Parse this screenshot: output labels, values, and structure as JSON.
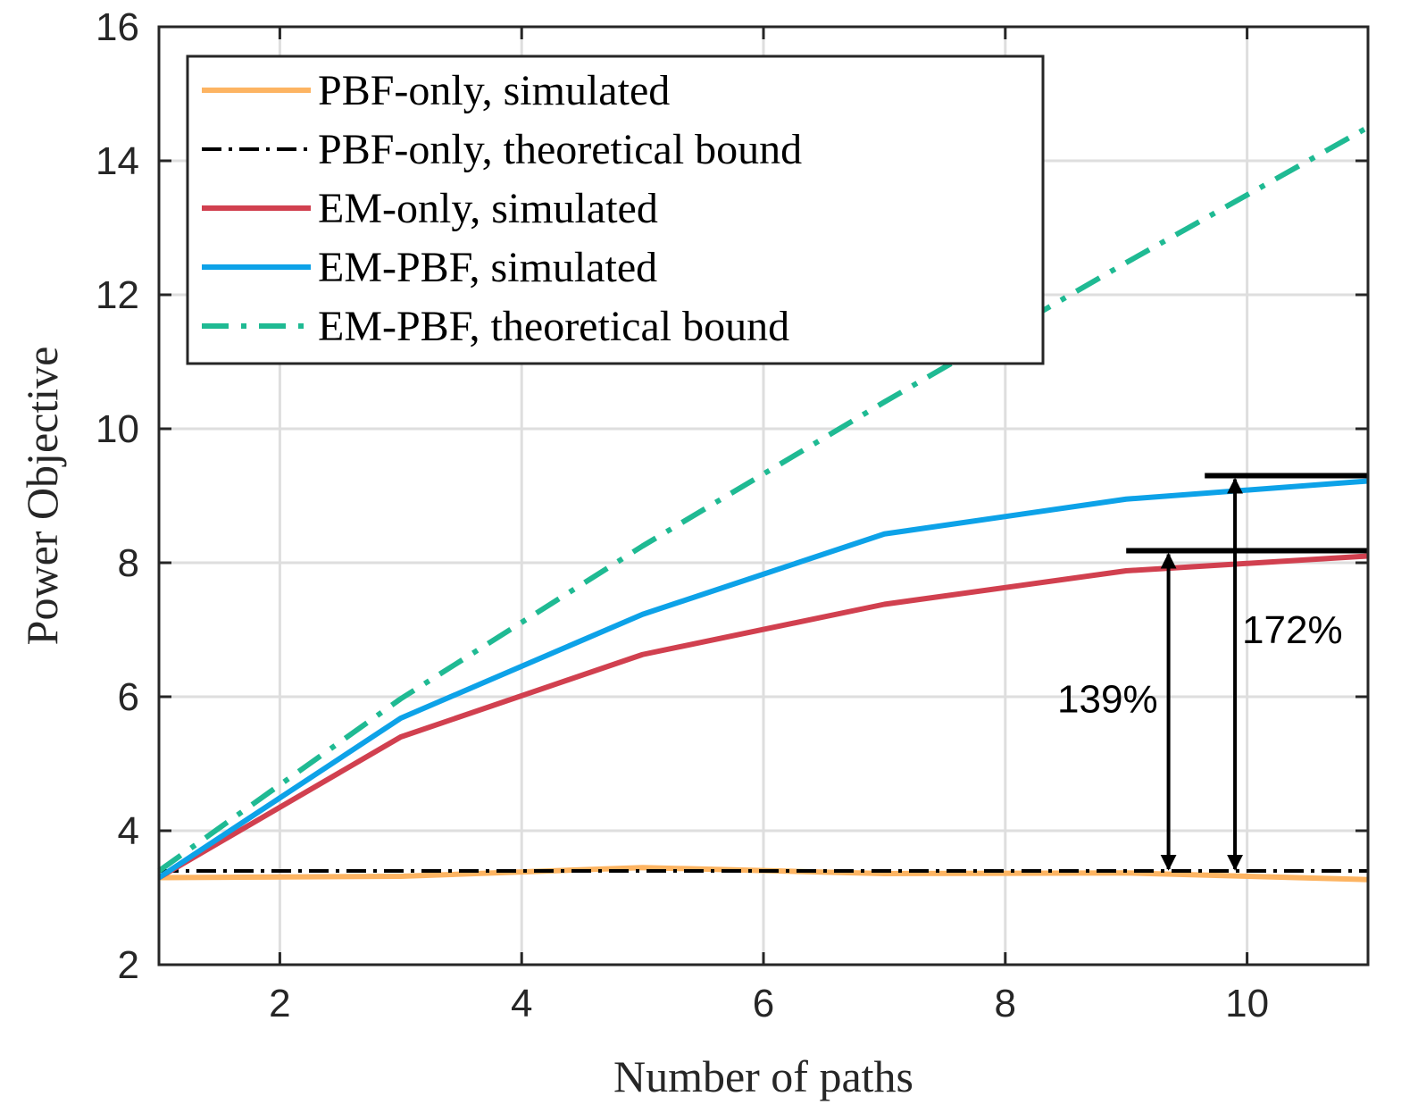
{
  "chart_data": {
    "type": "line",
    "xlabel": "Number of paths",
    "ylabel": "Power Objective",
    "xlim": [
      1,
      11
    ],
    "ylim": [
      2,
      16
    ],
    "xticks": [
      2,
      4,
      6,
      8,
      10
    ],
    "yticks": [
      2,
      4,
      6,
      8,
      10,
      12,
      14,
      16
    ],
    "grid": true,
    "legend_position": "top-left",
    "series": [
      {
        "name": "PBF-only, simulated",
        "color": "#FDB462",
        "style": "solid",
        "x": [
          1,
          3,
          5,
          7,
          9,
          11
        ],
        "values": [
          3.3,
          3.32,
          3.45,
          3.36,
          3.37,
          3.27
        ]
      },
      {
        "name": "PBF-only, theoretical bound",
        "color": "#000000",
        "style": "dashdot",
        "x": [
          1,
          11
        ],
        "values": [
          3.4,
          3.4
        ]
      },
      {
        "name": "EM-only, simulated",
        "color": "#D1404F",
        "style": "solid",
        "x": [
          1,
          3,
          5,
          7,
          9,
          11
        ],
        "values": [
          3.3,
          5.4,
          6.63,
          7.38,
          7.88,
          8.1
        ]
      },
      {
        "name": "EM-PBF, simulated",
        "color": "#0DA2E8",
        "style": "solid",
        "x": [
          1,
          3,
          5,
          7,
          9,
          11
        ],
        "values": [
          3.3,
          5.68,
          7.23,
          8.43,
          8.95,
          9.22
        ]
      },
      {
        "name": "EM-PBF, theoretical bound",
        "color": "#1FBA93",
        "style": "dashdot",
        "x": [
          1,
          3,
          5,
          7,
          9,
          11
        ],
        "values": [
          3.4,
          5.97,
          8.25,
          10.4,
          12.48,
          14.5
        ]
      }
    ],
    "annotations": [
      {
        "label": "139%",
        "x": 9.35,
        "from": 3.4,
        "to": 8.18,
        "bar_from": 9.0,
        "bar_to": 11
      },
      {
        "label": "172%",
        "x": 9.9,
        "from": 3.4,
        "to": 9.3,
        "bar_from": 9.65,
        "bar_to": 11
      }
    ]
  }
}
